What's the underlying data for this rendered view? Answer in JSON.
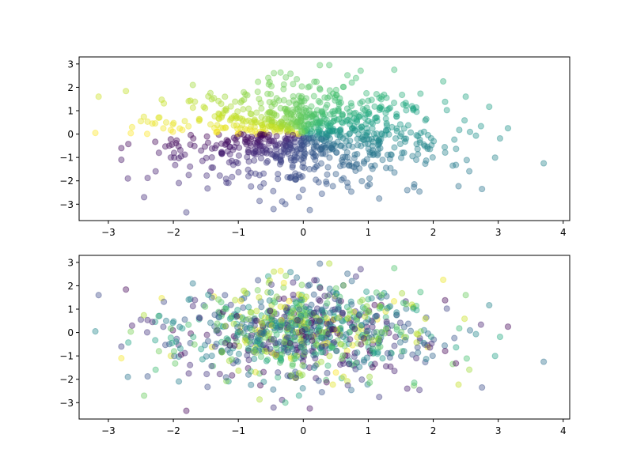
{
  "chart_data": [
    {
      "type": "scatter",
      "title": "",
      "xlabel": "",
      "ylabel": "",
      "xlim": [
        -3.45,
        4.1
      ],
      "ylim": [
        -3.7,
        3.3
      ],
      "xticks": [
        -3,
        -2,
        -1,
        0,
        1,
        2,
        3,
        4
      ],
      "yticks": [
        -3,
        -2,
        -1,
        0,
        1,
        2,
        3
      ],
      "marker_alpha": 0.4,
      "colormap": "viridis",
      "color_encoding": "angle of point (atan2(y, x)) mapped through viridis",
      "point_count": 1000,
      "grid": false,
      "legend": false,
      "sample_points": [
        [
          -3.15,
          1.6
        ],
        [
          -3.2,
          0.05
        ],
        [
          -2.8,
          -0.6
        ],
        [
          -2.8,
          -1.1
        ],
        [
          -2.7,
          -1.9
        ],
        [
          -2.5,
          0.55
        ],
        [
          -2.45,
          -2.7
        ],
        [
          -1.8,
          -3.35
        ],
        [
          -1.7,
          2.1
        ],
        [
          0.1,
          -3.25
        ],
        [
          0.4,
          2.95
        ],
        [
          1.4,
          2.75
        ],
        [
          3.7,
          -1.25
        ],
        [
          3.15,
          0.25
        ],
        [
          2.75,
          -2.35
        ],
        [
          2.5,
          1.6
        ],
        [
          2.3,
          -1.35
        ],
        [
          1.6,
          -2.4
        ],
        [
          -0.1,
          2.35
        ]
      ]
    },
    {
      "type": "scatter",
      "title": "",
      "xlabel": "",
      "ylabel": "",
      "xlim": [
        -3.45,
        4.1
      ],
      "ylim": [
        -3.7,
        3.3
      ],
      "xticks": [
        -3,
        -2,
        -1,
        0,
        1,
        2,
        3,
        4
      ],
      "yticks": [
        -3,
        -2,
        -1,
        0,
        1,
        2,
        3
      ],
      "marker_alpha": 0.4,
      "colormap": "viridis",
      "color_encoding": "random value per point mapped through viridis",
      "point_count": 1000,
      "grid": false,
      "legend": false,
      "sample_points": [
        [
          -3.15,
          1.6
        ],
        [
          -3.2,
          0.05
        ],
        [
          -2.8,
          -0.6
        ],
        [
          -2.8,
          -1.1
        ],
        [
          -2.7,
          -1.9
        ],
        [
          -2.5,
          0.55
        ],
        [
          -2.45,
          -2.7
        ],
        [
          -1.8,
          -3.35
        ],
        [
          -1.7,
          2.1
        ],
        [
          0.1,
          -3.25
        ],
        [
          0.4,
          2.95
        ],
        [
          1.4,
          2.75
        ],
        [
          3.7,
          -1.25
        ],
        [
          3.15,
          0.25
        ],
        [
          2.75,
          -2.35
        ],
        [
          2.5,
          1.6
        ],
        [
          2.3,
          -1.35
        ],
        [
          1.6,
          -2.4
        ],
        [
          -0.1,
          2.35
        ]
      ]
    }
  ]
}
